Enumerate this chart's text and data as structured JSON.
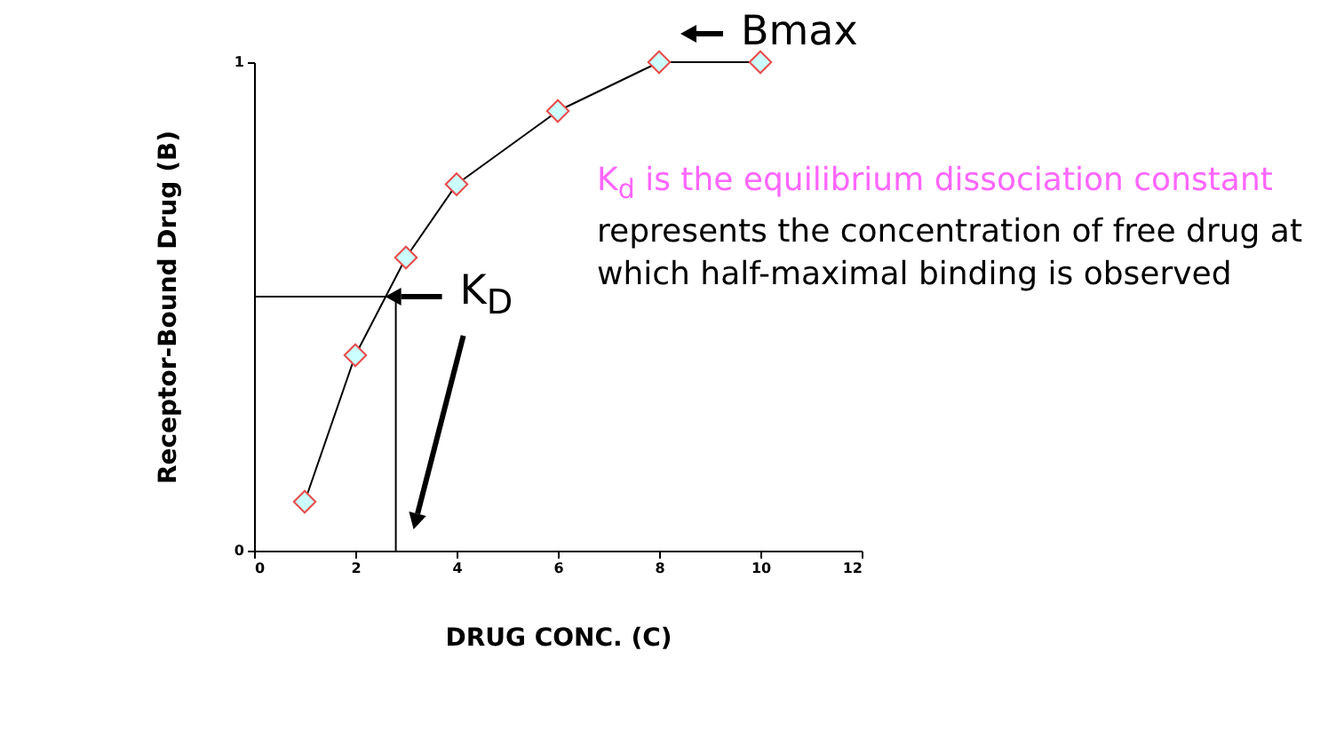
{
  "chart_data": {
    "type": "line",
    "xlabel": "DRUG CONC. (C)",
    "ylabel": "Receptor-Bound Drug (B)",
    "x": [
      1,
      2,
      3,
      4,
      6,
      8,
      10
    ],
    "series": [
      {
        "color": "#000000",
        "values": [
          0.1,
          0.4,
          0.6,
          0.75,
          0.9,
          1,
          1
        ]
      }
    ],
    "xlim": [
      0,
      12
    ],
    "xticks": [
      0,
      2,
      4,
      6,
      8,
      10,
      12
    ],
    "ylim": [
      0,
      1
    ],
    "yticks": [
      0,
      1
    ],
    "grid": false,
    "marker": "diamond",
    "line_style": "solid",
    "ref_lines": [
      {
        "axis": "y",
        "value": 0.52,
        "label": null
      },
      {
        "axis": "x",
        "value": 2.8,
        "label": null
      }
    ],
    "annotations": [
      {
        "text": "Bmax",
        "x": 8,
        "y": 1
      },
      {
        "text": "K$_{D}$",
        "x": 2.8,
        "y": 0.52
      },
      "K$_{d}$ is the equilibrium dissociation constant",
      "represents the concentration of free drug at which half-maximal binding is observed"
    ]
  }
}
